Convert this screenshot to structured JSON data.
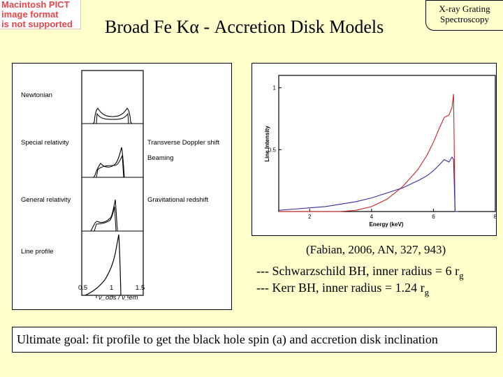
{
  "pict_warning": [
    "Macintosh PICT",
    "image format",
    "is not supported"
  ],
  "slide": {
    "title": "Broad Fe Kα - Accretion Disk Models",
    "corner_label": [
      "X-ray Grating",
      "Spectroscopy"
    ]
  },
  "left_figure": {
    "panel_labels": [
      "Newtonian",
      "Special relativity",
      "General relativity",
      "Line profile"
    ],
    "effect_labels": [
      "Transverse Doppler shift",
      "Beaming",
      "Gravitational redshift"
    ],
    "x_ticks": [
      "0.5",
      "1",
      "1.5"
    ],
    "x_axis_label": "ν_obs / ν_em"
  },
  "chart_data": {
    "type": "line",
    "xlabel": "Energy (keV)",
    "ylabel": "Line Intensity",
    "xlim": [
      1,
      8
    ],
    "ylim": [
      0,
      1.1
    ],
    "x_ticks": [
      "2",
      "4",
      "6",
      "8"
    ],
    "y_ticks": [
      "0.5",
      "1"
    ],
    "series": [
      {
        "color": "#d42020",
        "x": [
          1.0,
          2.0,
          3.0,
          3.5,
          4.0,
          4.5,
          5.0,
          5.5,
          5.8,
          6.0,
          6.2,
          6.35,
          6.5,
          6.6,
          6.65,
          6.7,
          6.75,
          6.8
        ],
        "y": [
          0.0,
          0.0,
          0.0,
          0.01,
          0.04,
          0.1,
          0.2,
          0.34,
          0.46,
          0.56,
          0.68,
          0.76,
          0.78,
          0.84,
          0.95,
          0.0,
          0.0,
          0.0
        ]
      },
      {
        "color": "#3a2aa0",
        "x": [
          1.0,
          1.5,
          2.0,
          2.5,
          3.0,
          3.5,
          4.0,
          4.5,
          5.0,
          5.5,
          5.8,
          6.0,
          6.2,
          6.35,
          6.5,
          6.6,
          6.65,
          6.7,
          6.75,
          6.8
        ],
        "y": [
          0.01,
          0.02,
          0.03,
          0.04,
          0.06,
          0.08,
          0.11,
          0.15,
          0.19,
          0.25,
          0.29,
          0.33,
          0.38,
          0.42,
          0.4,
          0.44,
          0.42,
          0.0,
          0.0,
          0.0
        ]
      }
    ]
  },
  "captions": {
    "citation": "(Fabian, 2006, AN, 327, 943)",
    "legend_1": "--- Schwarzschild BH, inner radius = 6 r",
    "legend_2": "--- Kerr BH, inner radius = 1.24 r",
    "subscript": "g"
  },
  "goal": "Ultimate goal: fit profile to get the black hole spin (a) and accretion disk inclination"
}
